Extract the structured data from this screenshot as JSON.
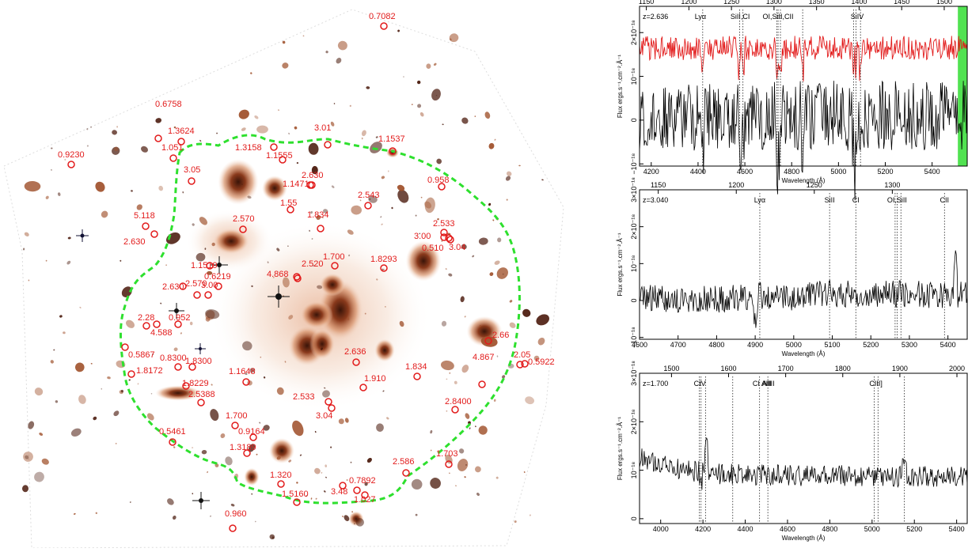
{
  "cluster_image": {
    "redshift_labels": [
      "0.7082",
      "0.6758",
      "1.3624",
      "1.051",
      "0.9230",
      "3.01",
      "1.1537",
      "1.3158",
      "1.1555",
      "3.05",
      "2.630",
      "1.1471",
      "0.958",
      "2.543",
      "1.55",
      "1.834",
      "2.533",
      "5.118",
      "2.570",
      "3.00",
      "0.510",
      "3.04",
      "2.630",
      "1.700",
      "1.8293",
      "1.1519",
      "0.6219",
      "2.520",
      "2.630",
      "2.570",
      "3.00",
      "4.868",
      "2.28",
      "0.952",
      "4.588",
      "0.5867",
      "0.8300",
      "1.8300",
      "2.636",
      "2.66",
      "1.8172",
      "1.1648",
      "1.910",
      "1.834",
      "4.867",
      "2.05",
      "0.5922",
      "1.8229",
      "2.5388",
      "2.533",
      "3.04",
      "2.8400",
      "1.700",
      "0.9164",
      "0.5461",
      "1.3189",
      "1.703",
      "2.586",
      "1.320",
      "1.5160",
      "0.7892",
      "3.48",
      "1.027",
      "0.960"
    ],
    "contour_color": "#2ee02e",
    "marker_color": "#e21b1b"
  },
  "spectra": [
    {
      "redshift_text": "z=2.636",
      "top_ticks": [
        "1150",
        "1200",
        "1250",
        "1300",
        "1350",
        "1400",
        "1450",
        "1500"
      ],
      "bottom_ticks": [
        "4200",
        "4400",
        "4600",
        "4800",
        "5000",
        "5200",
        "5400"
      ],
      "y_ticks": [
        "−10⁻¹⁸",
        "0",
        "10⁻¹⁸",
        "2×10⁻¹⁸"
      ],
      "lines": [
        "Lyα",
        "SiII,CI",
        "OI,SiII,CII",
        "SiIV"
      ],
      "xlabel": "Wavelength (Å)",
      "ylabel": "Flux ergs.s⁻¹.cm⁻².Å⁻¹",
      "colors": {
        "stack": "#e21b1b",
        "spec": "#000000",
        "band": "#33dd33"
      }
    },
    {
      "redshift_text": "z=3.040",
      "top_ticks": [
        "1150",
        "1200",
        "1250",
        "1300"
      ],
      "bottom_ticks": [
        "4600",
        "4700",
        "4800",
        "4900",
        "5000",
        "5100",
        "5200",
        "5300",
        "5400"
      ],
      "y_ticks": [
        "−10⁻¹⁸",
        "0",
        "10⁻¹⁸",
        "2×10⁻¹⁸",
        "3×10⁻¹⁸"
      ],
      "lines": [
        "Lyα",
        "SiII",
        "CI",
        "OI,SiII",
        "CII"
      ],
      "xlabel": "Wavelength (Å)",
      "ylabel": "Flux ergs.s⁻¹.cm⁻².Å⁻¹"
    },
    {
      "redshift_text": "z=1.700",
      "top_ticks": [
        "1500",
        "1600",
        "1700",
        "1800",
        "1900",
        "2000"
      ],
      "bottom_ticks": [
        "4000",
        "4200",
        "4400",
        "4600",
        "4800",
        "5000",
        "5200",
        "5400"
      ],
      "y_ticks": [
        "0",
        "10⁻¹⁸",
        "2×10⁻¹⁸",
        "3×10⁻¹⁸"
      ],
      "lines": [
        "CIV",
        "CI AlII",
        "AlIII",
        "CIII]"
      ],
      "xlabel": "Wavelength (Å)",
      "ylabel": "Flux ergs.s⁻¹.cm⁻².Å⁻¹"
    }
  ]
}
